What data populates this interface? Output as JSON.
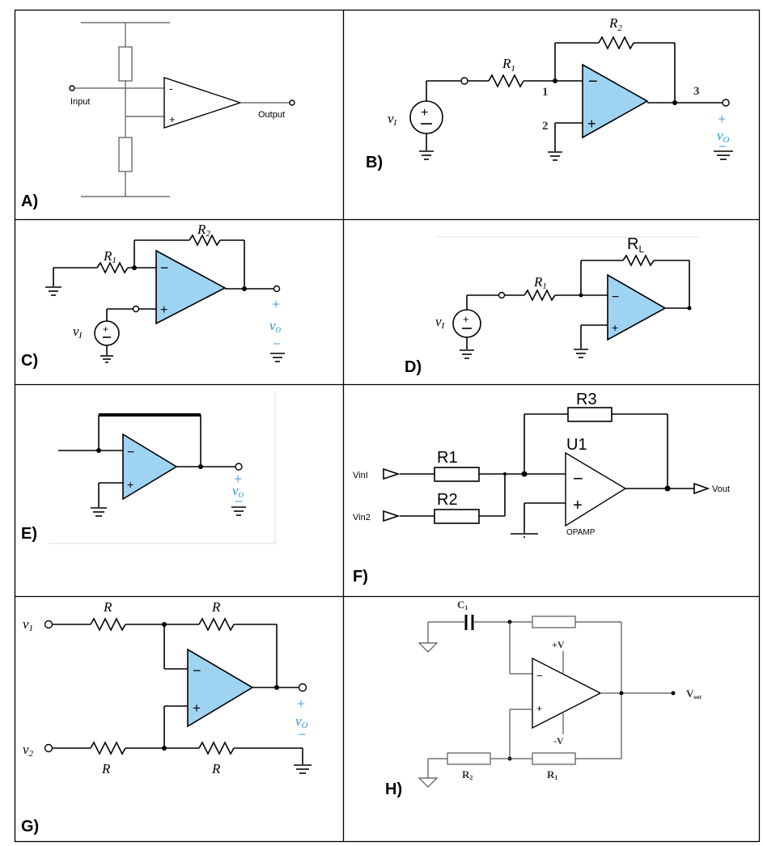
{
  "panels": [
    {
      "id": "A",
      "label": "A)",
      "texts": {
        "input": "Input",
        "output": "Output",
        "minus": "-",
        "plus": "+"
      }
    },
    {
      "id": "B",
      "label": "B)",
      "texts": {
        "r2": "R",
        "r2s": "2",
        "r1": "R",
        "r1s": "1",
        "n1": "1",
        "n2": "2",
        "n3": "3",
        "vi": "v",
        "vis": "I",
        "plus": "+",
        "vo": "v",
        "vos": "O",
        "minus": "−"
      }
    },
    {
      "id": "C",
      "label": "C)",
      "texts": {
        "r2": "R",
        "r2s": "2",
        "r1": "R",
        "r1s": "1",
        "vi": "v",
        "vis": "I",
        "plus": "+",
        "vo": "v",
        "vos": "O",
        "minus": "−"
      }
    },
    {
      "id": "D",
      "label": "D)",
      "texts": {
        "rl": "R",
        "rls": "L",
        "r1": "R",
        "r1s": "1",
        "vi": "v",
        "vis": "I"
      }
    },
    {
      "id": "E",
      "label": "E)",
      "texts": {
        "plus": "+",
        "vo": "v",
        "vos": "O",
        "minus": "−"
      }
    },
    {
      "id": "F",
      "label": "F)",
      "texts": {
        "r3": "R3",
        "u1": "U1",
        "r1": "R1",
        "r2": "R2",
        "vin1": "VinI",
        "vin2": "Vin2",
        "vout": "Vout",
        "opamp": "OPAMP"
      }
    },
    {
      "id": "G",
      "label": "G)",
      "texts": {
        "r": "R",
        "v1": "v",
        "v1s": "1",
        "v2": "v",
        "v2s": "2",
        "plus": "+",
        "vo": "v",
        "vos": "O",
        "minus": "−"
      }
    },
    {
      "id": "H",
      "label": "H)",
      "texts": {
        "c1": "C",
        "c1s": "1",
        "pv": "+V",
        "nv": "-V",
        "vout": "V",
        "vouts": "out",
        "r2": "R",
        "r2s": "2",
        "r1": "R",
        "r1s": "1"
      }
    }
  ],
  "colors": {
    "opamp_fill": "#9fd3f2",
    "accent_text": "#2a8fd6",
    "line": "#000000"
  }
}
